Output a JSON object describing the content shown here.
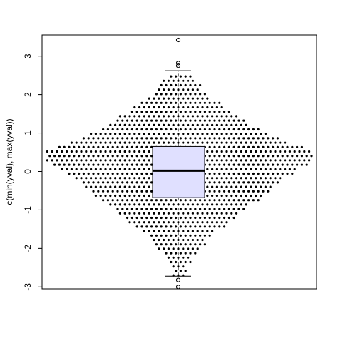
{
  "chart_data": {
    "type": "scatter",
    "subtype": "beeswarm-with-boxplot",
    "title": "",
    "xlabel": "",
    "ylabel": "c(min(yval), max(yval))",
    "ylim": [
      -3.05,
      3.55
    ],
    "y_ticks": [
      -3,
      -2,
      -1,
      0,
      1,
      2,
      3
    ],
    "y_tick_labels": [
      "-3",
      "-2",
      "-1",
      "0",
      "1",
      "2",
      "3"
    ],
    "grid": false,
    "legend": "none",
    "boxplot": {
      "whisker_low": -2.72,
      "q1": -0.68,
      "median": 0.02,
      "q3": 0.65,
      "whisker_high": 2.62,
      "outliers": [
        3.42,
        2.82,
        2.75,
        -2.82,
        -3.0
      ]
    },
    "swarm_profile": {
      "y": [
        -2.6,
        -2.3,
        -2.0,
        -1.7,
        -1.4,
        -1.1,
        -0.8,
        -0.5,
        -0.2,
        0.1,
        0.35,
        0.55,
        0.8,
        1.05,
        1.3,
        1.6,
        1.9,
        2.2,
        2.5
      ],
      "half_width_points": [
        1,
        2,
        4,
        6,
        9,
        12,
        15,
        18,
        21,
        25,
        28,
        27,
        21,
        17,
        13,
        10,
        6,
        4,
        2
      ]
    },
    "colors": {
      "box_fill": "#e0e0ff",
      "points": "#000000"
    }
  }
}
